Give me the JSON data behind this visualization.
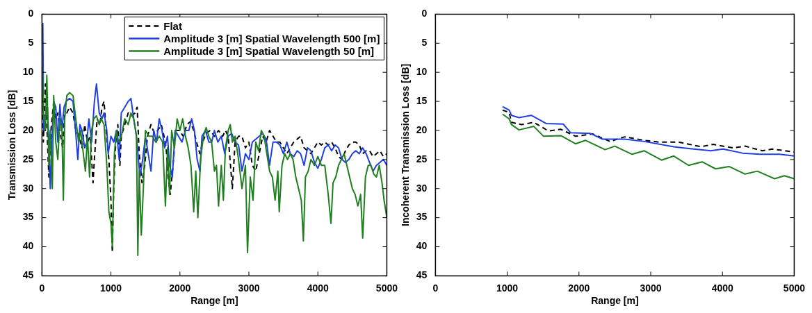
{
  "chart_data": [
    {
      "type": "line",
      "xlabel": "Range [m]",
      "ylabel": "Transmission Loss [dB]",
      "xlim": [
        0,
        5000
      ],
      "xticks": [
        0,
        1000,
        2000,
        3000,
        4000,
        5000
      ],
      "ylim": [
        45,
        0
      ],
      "yticks": [
        0,
        5,
        10,
        15,
        20,
        25,
        30,
        35,
        40,
        45
      ],
      "legend": "top right",
      "marker": "none",
      "series": [
        {
          "name": "Flat",
          "color": "#000000",
          "line_style": "dashed",
          "x": [
            0,
            20,
            50,
            80,
            100,
            130,
            170,
            200,
            230,
            260,
            300,
            330,
            360,
            400,
            450,
            490,
            540,
            580,
            620,
            660,
            700,
            740,
            760,
            800,
            840,
            870,
            900,
            930,
            970,
            1000,
            1020,
            1040,
            1070,
            1100,
            1130,
            1150,
            1200,
            1250,
            1300,
            1350,
            1380,
            1410,
            1450,
            1490,
            1530,
            1580,
            1630,
            1680,
            1730,
            1770,
            1800,
            1830,
            1860,
            1900,
            1940,
            1990,
            2050,
            2100,
            2150,
            2200,
            2240,
            2290,
            2330,
            2380,
            2440,
            2500,
            2560,
            2620,
            2660,
            2700,
            2740,
            2760,
            2800,
            2850,
            2900,
            2950,
            3000,
            3050,
            3100,
            3150,
            3200,
            3250,
            3300,
            3350,
            3400,
            3450,
            3500,
            3550,
            3600,
            3650,
            3700,
            3750,
            3800,
            3850,
            3900,
            3950,
            4000,
            4050,
            4100,
            4150,
            4200,
            4250,
            4300,
            4350,
            4400,
            4450,
            4500,
            4550,
            4600,
            4650,
            4700,
            4750,
            4800,
            4850,
            4900,
            4950,
            5000
          ],
          "values": [
            3,
            22,
            12,
            22,
            28,
            20,
            15,
            18,
            17,
            20,
            23,
            17,
            17,
            16,
            17,
            20,
            21,
            23,
            19,
            22,
            21,
            29,
            25,
            18,
            19,
            16,
            15,
            20,
            25,
            32,
            41,
            30,
            22,
            19,
            26,
            21,
            19,
            17,
            17.5,
            17,
            16,
            24,
            29,
            26,
            21,
            19,
            20.5,
            20,
            19,
            21,
            23,
            28,
            31,
            26,
            20,
            20,
            21,
            19,
            18.5,
            20,
            22,
            24,
            22,
            20.5,
            20,
            21,
            20,
            21,
            20,
            21,
            27,
            30,
            22,
            21,
            21,
            23,
            22,
            26,
            27,
            24,
            21,
            22,
            20,
            21,
            22,
            22,
            23,
            24,
            23,
            22,
            21.5,
            21,
            23,
            23.5,
            24,
            23,
            22,
            22.5,
            22,
            22.5,
            22,
            23,
            24.5,
            25,
            23.5,
            22.5,
            22,
            22,
            22.5,
            24,
            23.5,
            23.5,
            24.5,
            24,
            23.5,
            24.5,
            24
          ]
        },
        {
          "name": "Amplitude 3 [m] Spatial Wavelength 500 [m]",
          "color": "#1f3fe6",
          "x": [
            12,
            25,
            50,
            80,
            100,
            120,
            150,
            170,
            200,
            230,
            260,
            290,
            320,
            350,
            400,
            450,
            480,
            520,
            550,
            580,
            620,
            650,
            680,
            720,
            760,
            790,
            830,
            870,
            900,
            940,
            960,
            1000,
            1040,
            1080,
            1120,
            1150,
            1200,
            1250,
            1290,
            1330,
            1370,
            1420,
            1460,
            1500,
            1540,
            1580,
            1620,
            1660,
            1700,
            1740,
            1780,
            1820,
            1850,
            1890,
            1930,
            1980,
            2030,
            2080,
            2130,
            2170,
            2210,
            2250,
            2290,
            2320,
            2370,
            2420,
            2460,
            2500,
            2550,
            2600,
            2650,
            2700,
            2750,
            2800,
            2850,
            2900,
            2950,
            3000,
            3050,
            3100,
            3150,
            3200,
            3250,
            3300,
            3350,
            3400,
            3450,
            3500,
            3550,
            3600,
            3650,
            3700,
            3750,
            3800,
            3850,
            3900,
            3950,
            4000,
            4050,
            4100,
            4150,
            4200,
            4250,
            4300,
            4350,
            4400,
            4450,
            4500,
            4550,
            4600,
            4650,
            4700,
            4750,
            4800,
            4850,
            4900,
            4950,
            5000
          ],
          "values": [
            1.5,
            20,
            18,
            16,
            22,
            30,
            20,
            15,
            16,
            22,
            15.5,
            20,
            16,
            15,
            14.5,
            15,
            19,
            25,
            19,
            20,
            23,
            22,
            18,
            22,
            15,
            12,
            17,
            18,
            17,
            20,
            24,
            21,
            22,
            20,
            25,
            17,
            16,
            15,
            14.5,
            18,
            21,
            28,
            25,
            21,
            24,
            27,
            20,
            22,
            18,
            20,
            23,
            21,
            26,
            28,
            20,
            21,
            22,
            20,
            20,
            18,
            20,
            25,
            27,
            21,
            20,
            22,
            22,
            20,
            22,
            21,
            24,
            21,
            20.5,
            22,
            22.5,
            27,
            24,
            25,
            22,
            21.5,
            21,
            20.5,
            21.5,
            26,
            22,
            22,
            22.5,
            24,
            22,
            24,
            24.5,
            23.5,
            24,
            26,
            23,
            23.5,
            25.5,
            26.5,
            25,
            23,
            22.5,
            23.5,
            22.5,
            23,
            25,
            25.5,
            25,
            24,
            23.5,
            24,
            23,
            24,
            25.5,
            27,
            26,
            25.5,
            25,
            26
          ]
        },
        {
          "name": "Amplitude 3 [m] Spatial Wavelength 50 [m]",
          "color": "#1f7f1f",
          "x": [
            0,
            20,
            50,
            70,
            100,
            120,
            150,
            170,
            200,
            230,
            260,
            290,
            310,
            330,
            360,
            400,
            450,
            490,
            530,
            560,
            600,
            630,
            660,
            690,
            720,
            750,
            790,
            830,
            860,
            900,
            940,
            970,
            1000,
            1020,
            1050,
            1080,
            1110,
            1150,
            1200,
            1250,
            1290,
            1330,
            1370,
            1390,
            1410,
            1440,
            1470,
            1500,
            1550,
            1600,
            1650,
            1700,
            1750,
            1790,
            1820,
            1850,
            1880,
            1920,
            1960,
            2000,
            2040,
            2080,
            2120,
            2160,
            2200,
            2230,
            2260,
            2300,
            2340,
            2380,
            2420,
            2460,
            2500,
            2530,
            2560,
            2600,
            2630,
            2660,
            2700,
            2730,
            2760,
            2800,
            2850,
            2900,
            2950,
            2980,
            3020,
            3060,
            3100,
            3140,
            3180,
            3220,
            3260,
            3300,
            3340,
            3380,
            3420,
            3440,
            3480,
            3520,
            3560,
            3600,
            3640,
            3680,
            3720,
            3760,
            3790,
            3820,
            3860,
            3900,
            3950,
            4000,
            4050,
            4100,
            4150,
            4190,
            4220,
            4260,
            4300,
            4340,
            4380,
            4420,
            4460,
            4500,
            4540,
            4580,
            4620,
            4650,
            4690,
            4730,
            4770,
            4810,
            4850,
            4890,
            4930,
            4960,
            5000
          ],
          "values": [
            3,
            17,
            20,
            10.5,
            26,
            20,
            30,
            14,
            22,
            25,
            18,
            20,
            32,
            18,
            14,
            13.5,
            14,
            18,
            22,
            20,
            24,
            27,
            21,
            28,
            20,
            18,
            17.5,
            19,
            18,
            19,
            26,
            34,
            36,
            40,
            24,
            20,
            22,
            21,
            18,
            19,
            17,
            18,
            21,
            41.5,
            27,
            38,
            30,
            20,
            21,
            21,
            22,
            21,
            22,
            33,
            23,
            31,
            20,
            23,
            18,
            20,
            18,
            21,
            23,
            26,
            34,
            27,
            35,
            25,
            21,
            19.5,
            21,
            22,
            27,
            26,
            33,
            26,
            32,
            23,
            20,
            19,
            22,
            21,
            25,
            30,
            26,
            41,
            28,
            32,
            22,
            23.5,
            20,
            21,
            24,
            27,
            28,
            32,
            27,
            34,
            26,
            24,
            25,
            24,
            25,
            28,
            30,
            32,
            39,
            28,
            27,
            25,
            26,
            24.5,
            26,
            26,
            31,
            36,
            29,
            28,
            26,
            25,
            24,
            26,
            28,
            30,
            31,
            33,
            31,
            38.5,
            28,
            26,
            26,
            27.5,
            28,
            26,
            29,
            32,
            35
          ]
        }
      ]
    },
    {
      "type": "line",
      "xlabel": "Range [m]",
      "ylabel": "Incoherent Transmission Loss [dB]",
      "xlim": [
        0,
        5000
      ],
      "xticks": [
        0,
        1000,
        2000,
        3000,
        4000,
        5000
      ],
      "ylim": [
        45,
        0
      ],
      "yticks": [
        0,
        5,
        10,
        15,
        20,
        25,
        30,
        35,
        40,
        45
      ],
      "marker": "none",
      "series": [
        {
          "color": "#000000",
          "line_style": "dashed",
          "x": [
            935,
            1027,
            1060,
            1199,
            1370,
            1575,
            1747,
            1952,
            2192,
            2432,
            2637,
            2911,
            3116,
            3390,
            3699,
            3870,
            4144,
            4315,
            4555,
            4692,
            5000
          ],
          "values": [
            16.5,
            16.9,
            18.6,
            19,
            18.6,
            20.1,
            19.8,
            21,
            20.6,
            21.9,
            21.1,
            21.7,
            22,
            22,
            22.8,
            22.4,
            23,
            22.7,
            23.5,
            23.2,
            23.7
          ]
        },
        {
          "color": "#1f3fe6",
          "x": [
            935,
            1027,
            1060,
            1164,
            1336,
            1541,
            1781,
            1884,
            2158,
            2329,
            2637,
            2911,
            3322,
            3527,
            3836,
            4007,
            4281,
            4521,
            4795,
            5000
          ],
          "values": [
            15.9,
            16.5,
            17.4,
            17.8,
            17.4,
            18.8,
            18.9,
            20.4,
            20.5,
            21.5,
            21.5,
            21.9,
            22.8,
            23.1,
            23.5,
            23.2,
            23.9,
            24.1,
            24.1,
            24.4
          ]
        },
        {
          "color": "#1f7f1f",
          "x": [
            935,
            1027,
            1060,
            1164,
            1267,
            1370,
            1507,
            1747,
            1952,
            2089,
            2363,
            2500,
            2740,
            2911,
            3151,
            3322,
            3527,
            3716,
            3904,
            4092,
            4315,
            4486,
            4726,
            4863,
            5000
          ],
          "values": [
            17.2,
            18,
            19,
            19.9,
            19.6,
            19.3,
            21,
            20.9,
            22.3,
            21.7,
            23.3,
            22.7,
            24.1,
            23.5,
            25.1,
            24.4,
            26,
            25.4,
            26.6,
            26.2,
            27.5,
            27,
            28.3,
            27.8,
            28.3
          ]
        }
      ]
    }
  ]
}
